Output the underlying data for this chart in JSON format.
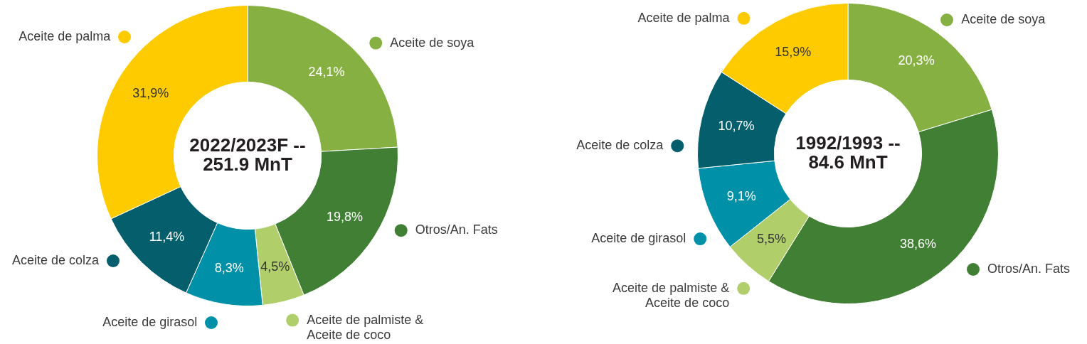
{
  "chart_data": [
    {
      "type": "donut",
      "title": "2022/2023F -- 251.9 MnT",
      "categories": [
        "Aceite de soya",
        "Otros/An. Fats",
        "Aceite de palmiste & Aceite de coco",
        "Aceite de girasol",
        "Aceite de colza",
        "Aceite de palma"
      ],
      "values": [
        24.1,
        19.8,
        4.5,
        8.3,
        11.4,
        31.9
      ],
      "value_labels": [
        "24,1%",
        "19,8%",
        "4,5%",
        "8,3%",
        "11,4%",
        "31,9%"
      ],
      "colors": [
        "#86b142",
        "#418034",
        "#b0cf6a",
        "#0090a8",
        "#055e6c",
        "#fecb00"
      ],
      "legend": "right"
    },
    {
      "type": "donut",
      "title": "1992/1993 -- 84.6 MnT",
      "categories": [
        "Aceite de soya",
        "Otros/An. Fats",
        "Aceite de palmiste & Aceite de coco",
        "Aceite de girasol",
        "Aceite de colza",
        "Aceite de palma"
      ],
      "values": [
        20.3,
        38.6,
        5.5,
        9.1,
        10.7,
        15.9
      ],
      "value_labels": [
        "20,3%",
        "38,6%",
        "5,5%",
        "9,1%",
        "10,7%",
        "15,9%"
      ],
      "colors": [
        "#86b142",
        "#418034",
        "#b0cf6a",
        "#0090a8",
        "#055e6c",
        "#fecb00"
      ],
      "legend": "left"
    }
  ]
}
